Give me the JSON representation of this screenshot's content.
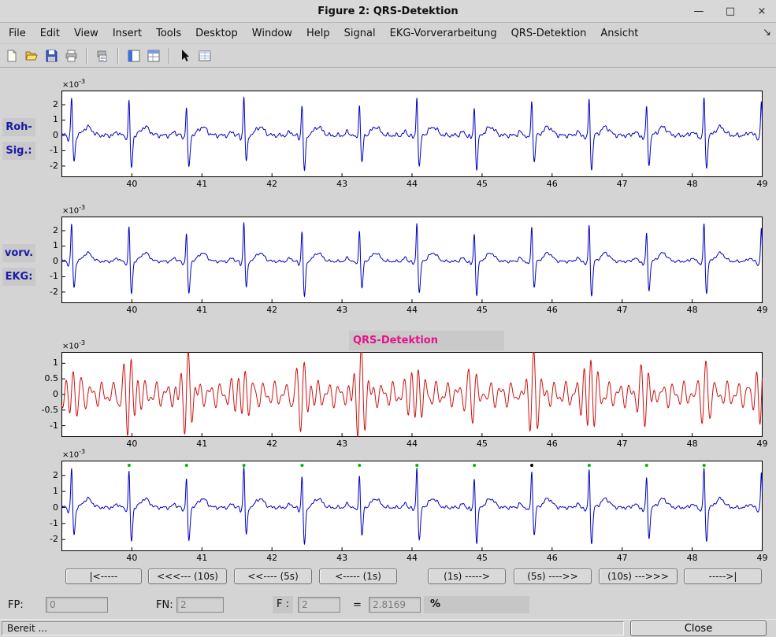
{
  "window": {
    "title": "Figure 2: QRS-Detektion",
    "minimize": "—",
    "maximize": "□",
    "close": "×"
  },
  "menu": {
    "items": [
      "File",
      "Edit",
      "View",
      "Insert",
      "Tools",
      "Desktop",
      "Window",
      "Help",
      "Signal",
      "EKG-Vorverarbeitung",
      "QRS-Detektion",
      "Ansicht"
    ],
    "dock_arrow": "↘"
  },
  "labels": {
    "plot1_line1": "Roh-",
    "plot1_line2": "Sig.:",
    "plot2_line1": "vorv.",
    "plot2_line2": "EKG:",
    "plot3_title": "QRS-Detektion"
  },
  "nav_buttons": [
    "|<-----",
    "<<<--- (10s)",
    "<<---- (5s)",
    "<----- (1s)",
    "(1s) ----->",
    "(5s) ---->>",
    "(10s) --->>>",
    "----->|"
  ],
  "stats": {
    "fp_label": "FP:",
    "fp_value": "0",
    "fn_label": "FN:",
    "fn_value": "2",
    "f_label": "F :",
    "f_value": "2",
    "equals": "=",
    "result_value": "2.8169",
    "percent": "%"
  },
  "statusbar": {
    "text": "Bereit ...",
    "close_label": "Close"
  },
  "colors": {
    "ecg_line": "#0000bf",
    "filtered_line": "#cc1111",
    "detection_marker": "#00bb00",
    "missed_marker": "#000000",
    "title_magenta": "#e8118c",
    "label_blue": "#1a1aa6"
  },
  "chart_data": {
    "type": "line",
    "title": "QRS-Detektion",
    "x_range": [
      39,
      49
    ],
    "x_ticks": [
      "40",
      "41",
      "42",
      "43",
      "44",
      "45",
      "46",
      "47",
      "48",
      "49"
    ],
    "exp_base": "×10",
    "exp_sup": "-3",
    "beats": [
      39.14,
      39.96,
      40.78,
      41.6,
      42.43,
      43.25,
      44.07,
      44.89,
      45.71,
      46.53,
      47.35,
      48.17,
      48.99
    ],
    "plots": [
      {
        "name": "raw-ecg",
        "kind": "ecg",
        "color": "#0000bf",
        "y_range": [
          -2.7,
          2.9
        ],
        "y_ticks": [
          2,
          1,
          0,
          -1,
          -2
        ],
        "noise": 0.08
      },
      {
        "name": "preprocessed-ecg",
        "kind": "ecg",
        "color": "#0000bf",
        "y_range": [
          -2.7,
          2.9
        ],
        "y_ticks": [
          2,
          1,
          0,
          -1,
          -2
        ],
        "noise": 0.05
      },
      {
        "name": "qrs-filtered",
        "kind": "filtered",
        "color": "#cc1111",
        "y_range": [
          -1.35,
          1.35
        ],
        "y_ticks": [
          1,
          0.5,
          0,
          -0.5,
          -1
        ],
        "noise": 0
      },
      {
        "name": "detection-ecg",
        "kind": "ecg",
        "color": "#0000bf",
        "y_range": [
          -2.7,
          2.9
        ],
        "y_ticks": [
          2,
          1,
          0,
          -1,
          -2
        ],
        "noise": 0.06,
        "detections": [
          39.96,
          40.78,
          41.6,
          42.43,
          43.25,
          44.07,
          44.89,
          46.53,
          47.35,
          48.17
        ],
        "missed": [
          45.71
        ]
      }
    ]
  }
}
